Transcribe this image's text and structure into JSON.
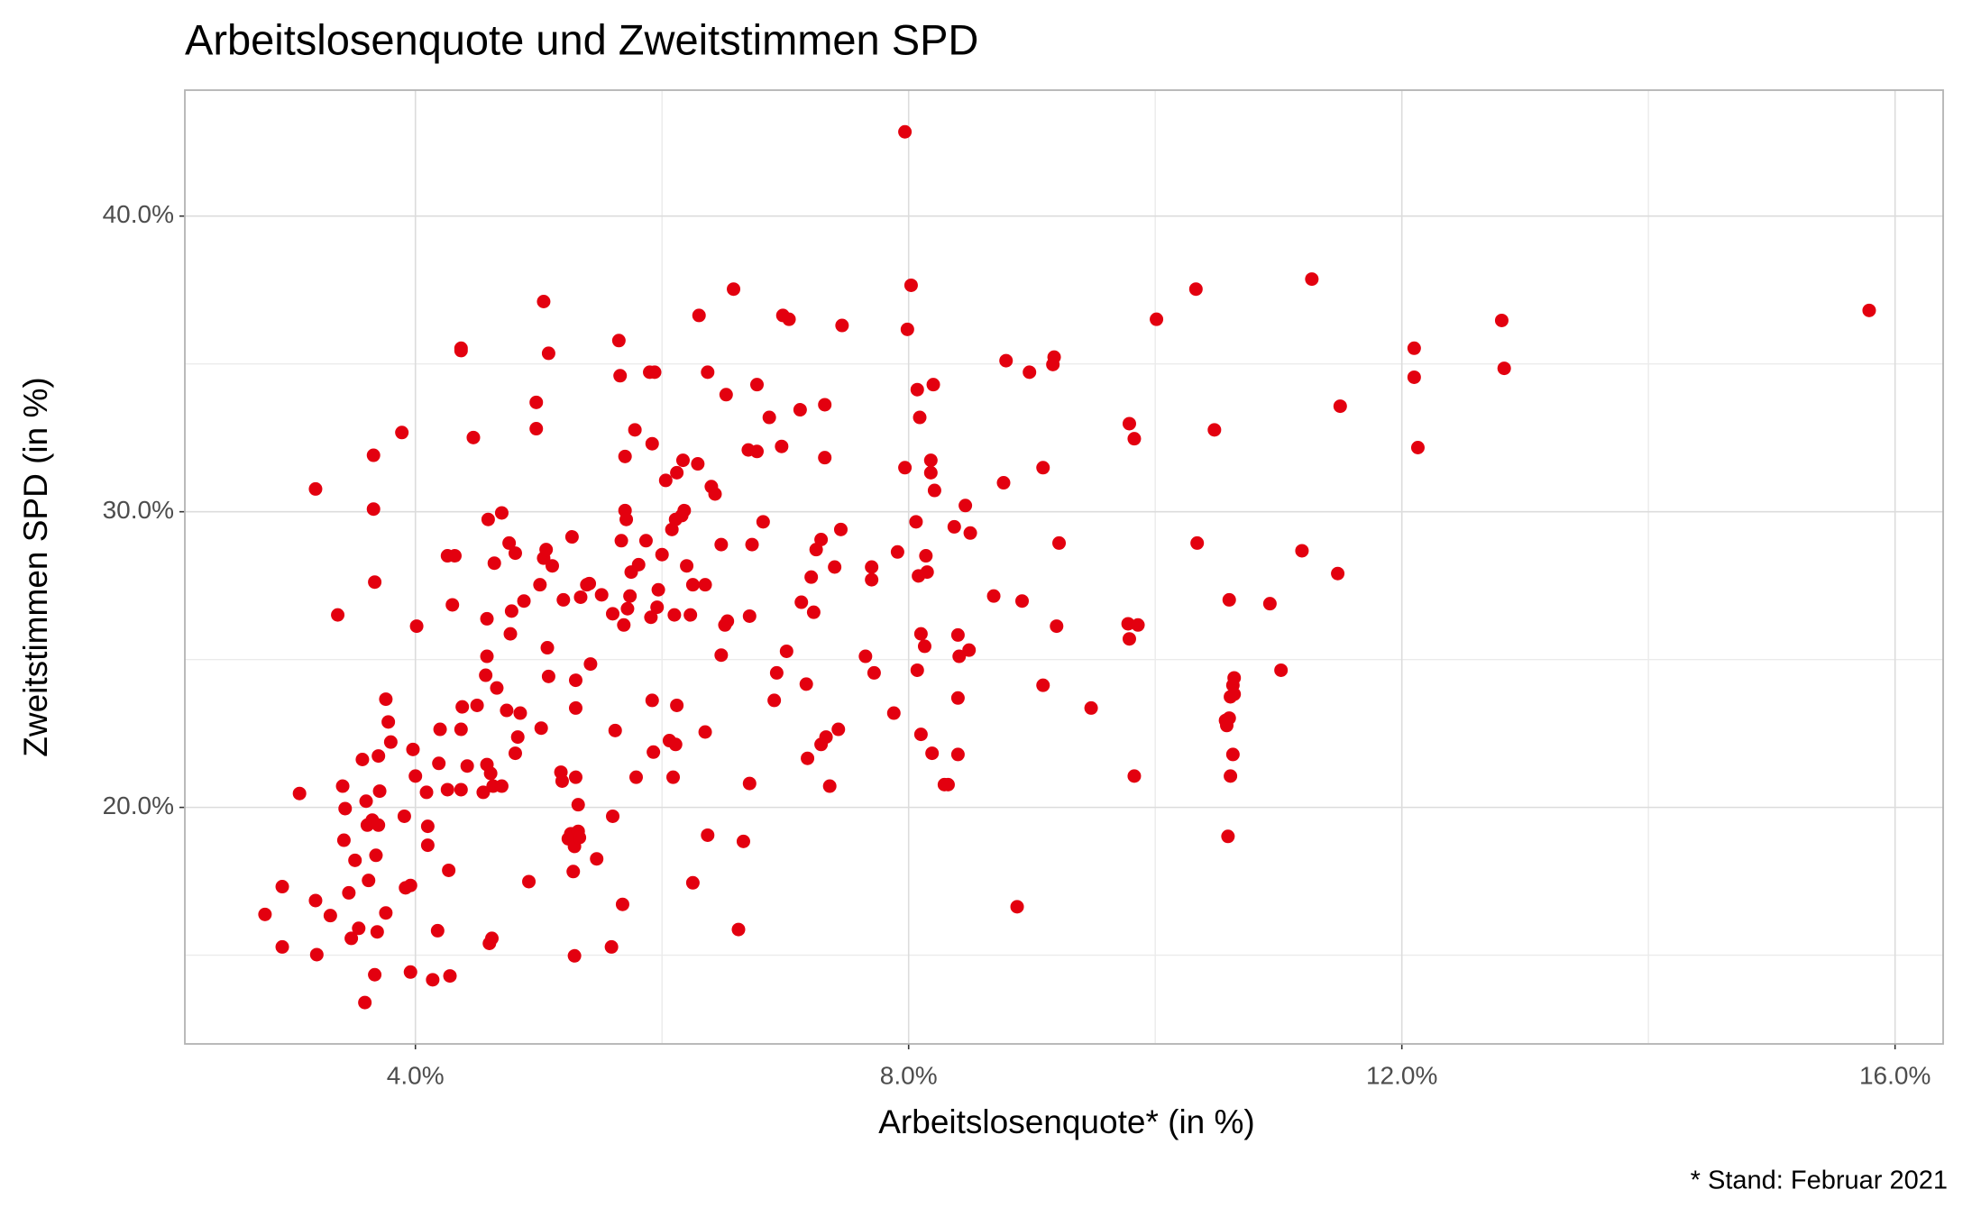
{
  "chart_data": {
    "type": "scatter",
    "title": "Arbeitslosenquote und Zweitstimmen SPD",
    "x_label": "Arbeitslosenquote* (in %)",
    "y_label": "Zweitstimmen SPD (in %)",
    "caption": "* Stand: Februar 2021",
    "color": "#e3000f",
    "grid": true,
    "minor_grid": true,
    "xlim": [
      2.13,
      16.39
    ],
    "ylim": [
      12.0,
      44.26
    ],
    "xticks": [
      {
        "value": 4,
        "label": "4.0%"
      },
      {
        "value": 8,
        "label": "8.0%"
      },
      {
        "value": 12,
        "label": "12.0%"
      },
      {
        "value": 16,
        "label": "16.0%"
      }
    ],
    "yticks": [
      {
        "value": 20,
        "label": "20.0%"
      },
      {
        "value": 30,
        "label": "30.0%"
      },
      {
        "value": 40,
        "label": "40.0%"
      }
    ],
    "x": [
      7.97,
      15.79,
      2.78,
      2.92,
      2.92,
      3.06,
      3.19,
      3.19,
      3.2,
      3.31,
      3.37,
      3.41,
      3.43,
      3.42,
      3.46,
      3.48,
      3.51,
      3.54,
      3.57,
      3.59,
      3.6,
      3.61,
      3.62,
      3.65,
      3.66,
      3.66,
      3.67,
      3.67,
      3.68,
      3.69,
      3.7,
      3.7,
      3.71,
      3.76,
      3.76,
      3.78,
      3.8,
      3.89,
      3.91,
      3.92,
      3.96,
      3.96,
      3.98,
      4.0,
      4.01,
      4.09,
      4.1,
      4.1,
      4.14,
      4.18,
      4.19,
      4.2,
      4.26,
      4.27,
      4.28,
      4.26,
      4.32,
      4.3,
      4.37,
      4.37,
      4.38,
      4.37,
      4.37,
      4.42,
      4.47,
      4.5,
      4.55,
      4.57,
      4.58,
      4.58,
      4.58,
      4.6,
      4.59,
      4.61,
      4.62,
      4.63,
      4.64,
      4.66,
      4.7,
      4.7,
      4.74,
      4.76,
      4.77,
      4.78,
      4.81,
      4.81,
      4.83,
      4.85,
      4.88,
      4.92,
      4.98,
      4.98,
      5.01,
      5.02,
      5.04,
      5.04,
      5.06,
      5.07,
      5.08,
      5.08,
      5.11,
      5.18,
      5.19,
      5.2,
      5.24,
      5.26,
      5.27,
      5.28,
      5.29,
      5.29,
      5.3,
      5.3,
      5.3,
      5.32,
      5.32,
      5.33,
      5.34,
      5.39,
      5.41,
      5.42,
      5.47,
      5.51,
      5.59,
      5.6,
      5.6,
      5.62,
      5.65,
      5.66,
      5.67,
      5.68,
      5.69,
      5.7,
      5.7,
      5.71,
      5.72,
      5.74,
      5.75,
      5.78,
      5.79,
      5.81,
      5.87,
      5.9,
      5.91,
      5.92,
      5.92,
      5.93,
      5.94,
      5.96,
      5.97,
      6.0,
      6.03,
      6.06,
      6.08,
      6.09,
      6.1,
      6.11,
      6.11,
      6.12,
      6.12,
      6.16,
      6.17,
      6.18,
      6.2,
      6.23,
      6.25,
      6.25,
      6.29,
      6.3,
      6.35,
      6.35,
      6.37,
      6.37,
      6.4,
      6.43,
      6.48,
      6.48,
      6.51,
      6.52,
      6.53,
      6.58,
      6.62,
      6.66,
      6.7,
      6.71,
      6.71,
      6.73,
      6.77,
      6.77,
      6.82,
      6.87,
      6.91,
      6.93,
      6.97,
      6.98,
      7.01,
      7.03,
      7.12,
      7.13,
      7.17,
      7.18,
      7.21,
      7.23,
      7.25,
      7.29,
      7.29,
      7.32,
      7.32,
      7.33,
      7.36,
      7.4,
      7.43,
      7.45,
      7.46,
      7.65,
      7.7,
      7.7,
      7.72,
      7.88,
      7.91,
      7.97,
      7.99,
      8.02,
      8.06,
      8.07,
      8.07,
      8.08,
      8.09,
      8.1,
      8.1,
      8.13,
      8.14,
      8.15,
      8.18,
      8.18,
      8.19,
      8.2,
      8.21,
      8.29,
      8.32,
      8.37,
      8.4,
      8.4,
      8.4,
      8.41,
      8.46,
      8.49,
      8.5,
      8.69,
      8.77,
      8.79,
      8.88,
      8.92,
      8.98,
      9.09,
      9.09,
      9.17,
      9.18,
      9.2,
      9.22,
      9.48,
      9.79,
      9.78,
      9.79,
      9.83,
      9.83,
      9.86,
      10.01,
      10.33,
      10.34,
      10.48,
      10.57,
      10.58,
      10.59,
      10.6,
      10.6,
      10.61,
      10.61,
      10.63,
      10.63,
      10.64,
      10.64,
      10.93,
      11.02,
      11.19,
      11.27,
      11.48,
      11.5,
      12.1,
      12.1,
      12.13,
      12.81,
      12.83
    ],
    "values": [
      42.85,
      36.81,
      16.38,
      17.32,
      15.28,
      20.47,
      30.77,
      16.85,
      15.02,
      16.34,
      26.51,
      20.72,
      19.96,
      18.89,
      17.11,
      15.57,
      18.21,
      15.91,
      21.62,
      13.4,
      20.21,
      19.4,
      17.53,
      19.57,
      30.09,
      31.91,
      14.34,
      27.62,
      18.38,
      15.79,
      21.74,
      19.4,
      20.55,
      16.43,
      23.66,
      22.89,
      22.21,
      32.68,
      19.7,
      17.28,
      17.36,
      14.43,
      21.96,
      21.06,
      26.13,
      20.51,
      19.36,
      18.72,
      14.17,
      15.83,
      21.49,
      22.64,
      20.6,
      17.87,
      14.3,
      28.51,
      28.51,
      26.85,
      20.6,
      22.64,
      23.4,
      35.53,
      35.45,
      21.4,
      32.51,
      23.45,
      20.51,
      24.47,
      25.11,
      21.45,
      26.38,
      15.4,
      29.74,
      21.15,
      15.57,
      20.72,
      28.26,
      24.04,
      29.96,
      20.72,
      23.28,
      28.94,
      25.87,
      26.64,
      21.83,
      28.6,
      22.38,
      23.19,
      26.98,
      17.49,
      33.7,
      32.81,
      27.53,
      22.68,
      37.11,
      28.43,
      28.72,
      25.4,
      24.43,
      35.36,
      28.17,
      21.19,
      20.89,
      27.02,
      18.94,
      19.11,
      29.15,
      17.83,
      18.68,
      14.98,
      24.3,
      23.36,
      21.02,
      20.09,
      19.19,
      18.98,
      27.11,
      27.53,
      27.57,
      24.85,
      18.26,
      27.19,
      15.28,
      26.55,
      19.7,
      22.6,
      35.79,
      34.6,
      29.02,
      16.72,
      26.17,
      31.87,
      30.04,
      29.74,
      26.72,
      27.15,
      27.96,
      32.77,
      21.02,
      28.21,
      29.02,
      34.72,
      26.43,
      32.3,
      23.62,
      21.87,
      34.72,
      26.77,
      27.36,
      28.55,
      31.06,
      22.26,
      29.4,
      21.02,
      26.51,
      29.74,
      22.13,
      31.32,
      23.45,
      29.87,
      31.74,
      30.04,
      28.17,
      26.51,
      17.45,
      27.53,
      31.62,
      36.64,
      27.53,
      22.55,
      34.72,
      19.06,
      30.85,
      30.6,
      28.89,
      25.15,
      26.17,
      33.96,
      26.3,
      37.53,
      15.87,
      18.85,
      32.09,
      26.47,
      20.81,
      28.89,
      34.3,
      32.04,
      29.66,
      33.19,
      23.62,
      24.55,
      32.21,
      36.64,
      25.28,
      36.51,
      33.45,
      26.94,
      24.17,
      21.66,
      27.79,
      26.6,
      28.72,
      29.06,
      22.13,
      33.62,
      31.83,
      22.38,
      20.72,
      28.13,
      22.64,
      29.4,
      36.3,
      25.11,
      28.13,
      27.7,
      24.55,
      23.19,
      28.64,
      31.49,
      36.17,
      37.66,
      29.66,
      24.64,
      34.13,
      27.83,
      33.19,
      25.87,
      22.47,
      25.45,
      28.51,
      27.96,
      31.74,
      31.32,
      21.83,
      34.3,
      30.72,
      20.77,
      20.77,
      29.49,
      25.83,
      23.7,
      21.79,
      25.11,
      30.21,
      25.32,
      29.28,
      27.15,
      30.98,
      35.11,
      16.64,
      26.98,
      34.72,
      31.49,
      24.13,
      34.98,
      35.23,
      26.13,
      28.94,
      23.36,
      32.98,
      26.21,
      25.7,
      32.47,
      21.06,
      26.17,
      36.51,
      37.53,
      28.94,
      32.77,
      22.94,
      22.77,
      19.02,
      23.02,
      27.02,
      23.74,
      21.06,
      24.13,
      21.79,
      24.38,
      23.83,
      26.89,
      24.64,
      28.68,
      37.87,
      27.91,
      33.57,
      35.53,
      34.55,
      32.17,
      36.47,
      34.85
    ]
  }
}
